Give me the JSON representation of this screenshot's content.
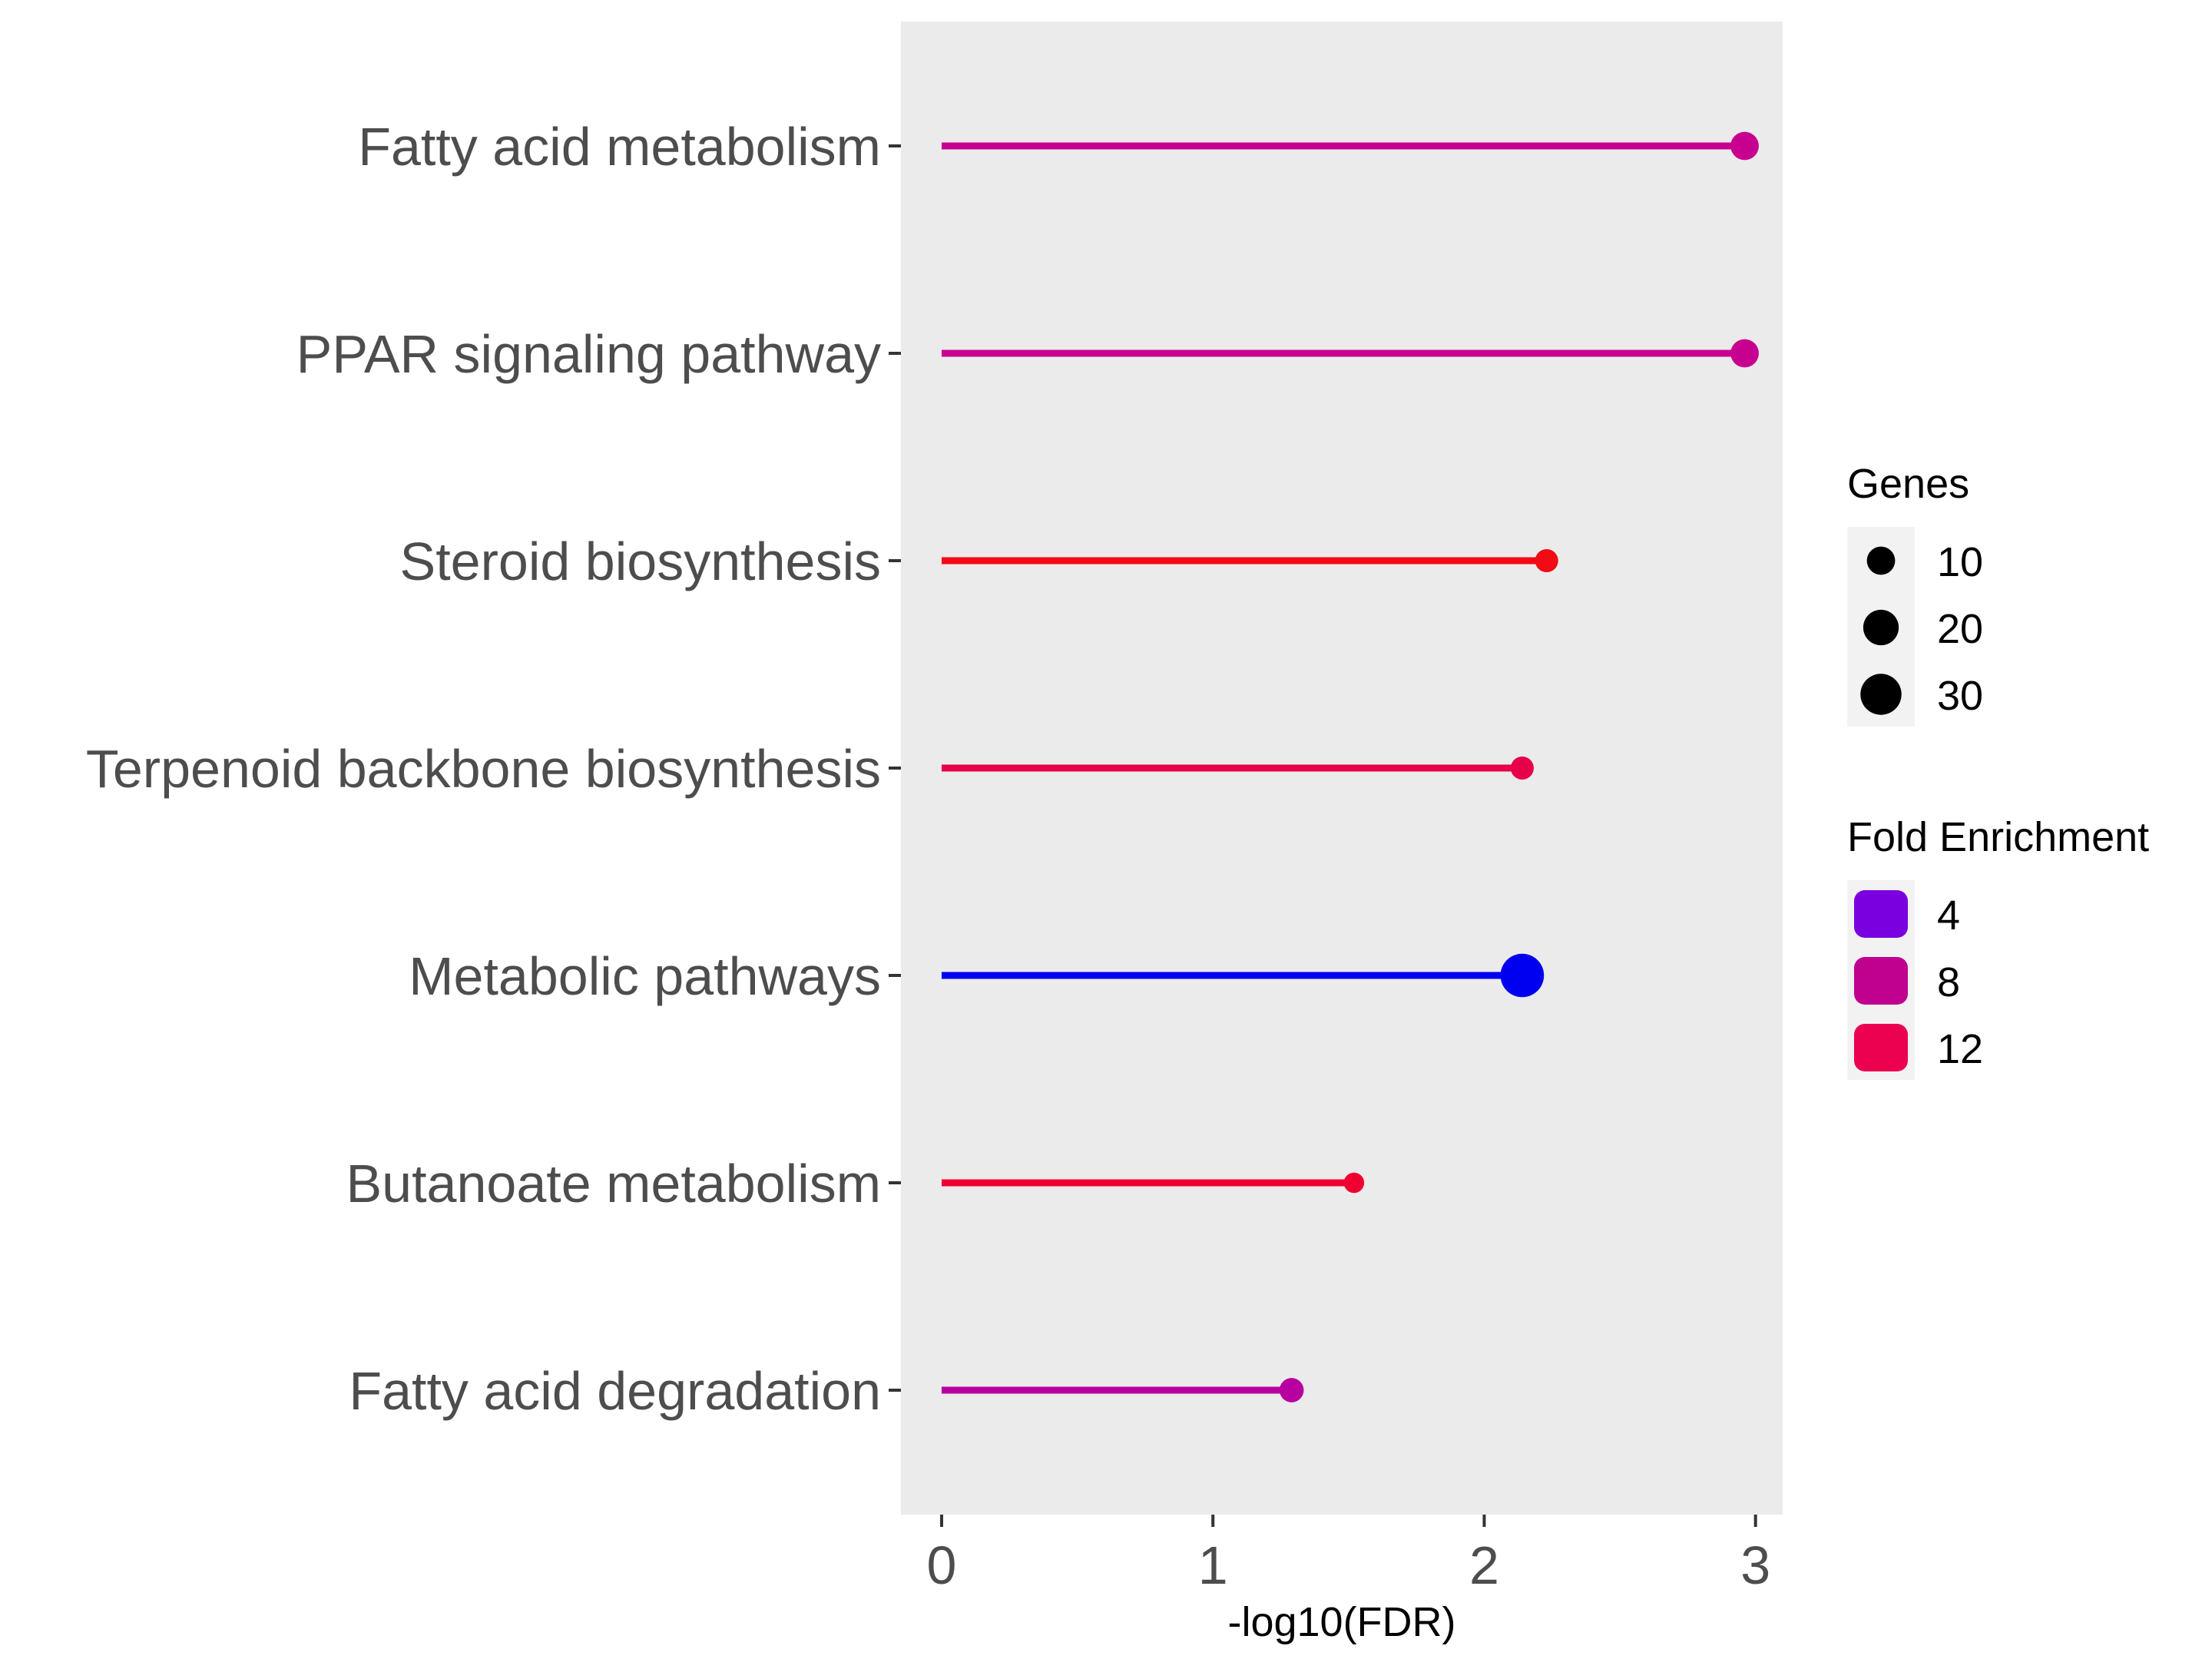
{
  "chart_data": {
    "type": "lollipop",
    "xlabel": "-log10(FDR)",
    "ylabel": "",
    "xlim": [
      -0.15,
      3.1
    ],
    "xticks": [
      0,
      1,
      2,
      3
    ],
    "grid": false,
    "panel_background": "#ebebeb",
    "categories": [
      "Fatty acid metabolism",
      "PPAR signaling pathway",
      "Steroid biosynthesis",
      "Terpenoid backbone biosynthesis",
      "Metabolic pathways",
      "Butanoate metabolism",
      "Fatty acid degradation"
    ],
    "points": [
      {
        "category": "Fatty acid metabolism",
        "neg_log10_fdr": 2.96,
        "genes": 10,
        "fold_enrichment": 9.0,
        "color": "#c8008f"
      },
      {
        "category": "PPAR signaling pathway",
        "neg_log10_fdr": 2.96,
        "genes": 10,
        "fold_enrichment": 9.0,
        "color": "#c8008f"
      },
      {
        "category": "Steroid biosynthesis",
        "neg_log10_fdr": 2.23,
        "genes": 5,
        "fold_enrichment": 15.0,
        "color": "#f20a14"
      },
      {
        "category": "Terpenoid backbone biosynthesis",
        "neg_log10_fdr": 2.14,
        "genes": 5,
        "fold_enrichment": 13.0,
        "color": "#e6004a"
      },
      {
        "category": "Metabolic pathways",
        "neg_log10_fdr": 2.14,
        "genes": 35,
        "fold_enrichment": 2.0,
        "color": "#0000f0"
      },
      {
        "category": "Butanoate metabolism",
        "neg_log10_fdr": 1.52,
        "genes": 3,
        "fold_enrichment": 14.0,
        "color": "#f00030"
      },
      {
        "category": "Fatty acid degradation",
        "neg_log10_fdr": 1.29,
        "genes": 6,
        "fold_enrichment": 8.0,
        "color": "#b800a0"
      }
    ],
    "legend_genes": {
      "title": "Genes",
      "items": [
        {
          "label": "10",
          "value": 10
        },
        {
          "label": "20",
          "value": 20
        },
        {
          "label": "30",
          "value": 30
        }
      ]
    },
    "legend_fold": {
      "title": "Fold Enrichment",
      "items": [
        {
          "label": "4",
          "color": "#7a00e0"
        },
        {
          "label": "8",
          "color": "#c0008f"
        },
        {
          "label": "12",
          "color": "#ec0050"
        }
      ]
    },
    "legend_position": "right"
  }
}
